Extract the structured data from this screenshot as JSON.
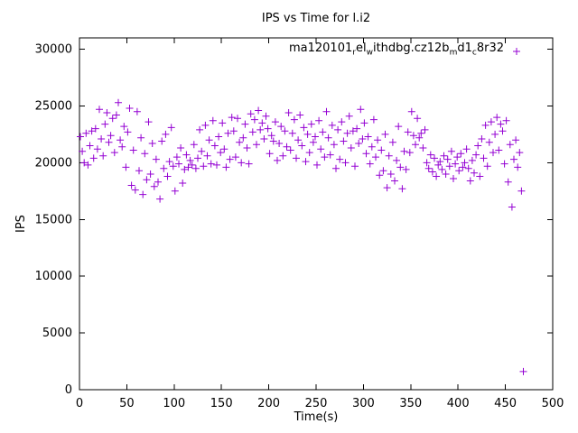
{
  "chart": {
    "title": "IPS vs Time for l.i2",
    "x_label": "Time(s)",
    "y_label": "IPS"
  },
  "legend": {
    "label_plain": "ma120101_rel_withdbg.cz12b_md1_c8r32",
    "segments": [
      {
        "text": "ma120101",
        "sub": false
      },
      {
        "text": "r",
        "sub": true
      },
      {
        "text": "el",
        "sub": false
      },
      {
        "text": "w",
        "sub": true
      },
      {
        "text": "ithdbg.cz12b",
        "sub": false
      },
      {
        "text": "m",
        "sub": true
      },
      {
        "text": "d1",
        "sub": false
      },
      {
        "text": "c",
        "sub": true
      },
      {
        "text": "8r32",
        "sub": false
      }
    ],
    "marker": "plus",
    "color": "#9400d3",
    "position": "top-right-inside"
  },
  "axes": {
    "x": {
      "label": "Time(s)",
      "min": 0,
      "max": 500,
      "tick_step": 50,
      "ticks": [
        0,
        50,
        100,
        150,
        200,
        250,
        300,
        350,
        400,
        450,
        500
      ]
    },
    "y": {
      "label": "IPS",
      "min": 0,
      "max": 30000,
      "tick_step": 5000,
      "ticks": [
        0,
        5000,
        10000,
        15000,
        20000,
        25000,
        30000
      ]
    }
  },
  "chart_data": {
    "type": "scatter",
    "title": "IPS vs Time for l.i2",
    "xlabel": "Time(s)",
    "ylabel": "IPS",
    "xlim": [
      0,
      500
    ],
    "ylim": [
      0,
      31000
    ],
    "grid": false,
    "legend_position": "top-right-inside",
    "series": [
      {
        "name": "ma120101_rel_withdbg.cz12b_md1_c8r32",
        "color": "#9400d3",
        "marker": "plus",
        "points": [
          [
            1,
            22300
          ],
          [
            3,
            21000
          ],
          [
            5,
            20000
          ],
          [
            7,
            22600
          ],
          [
            9,
            19800
          ],
          [
            11,
            21500
          ],
          [
            13,
            22800
          ],
          [
            15,
            20400
          ],
          [
            17,
            23000
          ],
          [
            19,
            21200
          ],
          [
            21,
            24700
          ],
          [
            23,
            22100
          ],
          [
            25,
            20600
          ],
          [
            27,
            23400
          ],
          [
            29,
            24400
          ],
          [
            31,
            21800
          ],
          [
            33,
            22400
          ],
          [
            35,
            23900
          ],
          [
            37,
            20900
          ],
          [
            39,
            24200
          ],
          [
            41,
            25300
          ],
          [
            43,
            22000
          ],
          [
            45,
            21400
          ],
          [
            47,
            23200
          ],
          [
            49,
            19600
          ],
          [
            51,
            22700
          ],
          [
            53,
            24800
          ],
          [
            55,
            18000
          ],
          [
            57,
            21100
          ],
          [
            59,
            17600
          ],
          [
            61,
            24500
          ],
          [
            63,
            19300
          ],
          [
            65,
            22200
          ],
          [
            67,
            17200
          ],
          [
            69,
            20800
          ],
          [
            71,
            18500
          ],
          [
            73,
            23600
          ],
          [
            75,
            19000
          ],
          [
            77,
            21700
          ],
          [
            79,
            17900
          ],
          [
            81,
            20300
          ],
          [
            83,
            18300
          ],
          [
            85,
            16800
          ],
          [
            87,
            21900
          ],
          [
            89,
            19500
          ],
          [
            91,
            22500
          ],
          [
            93,
            18800
          ],
          [
            95,
            20100
          ],
          [
            97,
            23100
          ],
          [
            99,
            19700
          ],
          [
            101,
            17500
          ],
          [
            103,
            20500
          ],
          [
            105,
            19900
          ],
          [
            107,
            21300
          ],
          [
            109,
            18200
          ],
          [
            111,
            19400
          ],
          [
            113,
            20700
          ],
          [
            115,
            19600
          ],
          [
            117,
            20200
          ],
          [
            119,
            19800
          ],
          [
            121,
            21600
          ],
          [
            123,
            19500
          ],
          [
            125,
            20400
          ],
          [
            127,
            22900
          ],
          [
            129,
            21000
          ],
          [
            131,
            19700
          ],
          [
            133,
            23300
          ],
          [
            135,
            20600
          ],
          [
            137,
            22000
          ],
          [
            139,
            19900
          ],
          [
            141,
            23700
          ],
          [
            143,
            21500
          ],
          [
            145,
            19800
          ],
          [
            147,
            22300
          ],
          [
            149,
            20900
          ],
          [
            151,
            23500
          ],
          [
            153,
            21200
          ],
          [
            155,
            19600
          ],
          [
            157,
            22600
          ],
          [
            159,
            20300
          ],
          [
            161,
            24000
          ],
          [
            163,
            22800
          ],
          [
            165,
            20500
          ],
          [
            167,
            23900
          ],
          [
            169,
            21800
          ],
          [
            171,
            20000
          ],
          [
            173,
            22200
          ],
          [
            175,
            23400
          ],
          [
            177,
            21300
          ],
          [
            179,
            19900
          ],
          [
            181,
            24300
          ],
          [
            183,
            22700
          ],
          [
            185,
            23800
          ],
          [
            187,
            21600
          ],
          [
            189,
            24600
          ],
          [
            191,
            22900
          ],
          [
            193,
            23500
          ],
          [
            195,
            22100
          ],
          [
            197,
            24100
          ],
          [
            199,
            23000
          ],
          [
            201,
            20800
          ],
          [
            203,
            22400
          ],
          [
            205,
            21900
          ],
          [
            207,
            23600
          ],
          [
            209,
            20200
          ],
          [
            211,
            21700
          ],
          [
            213,
            23200
          ],
          [
            215,
            20600
          ],
          [
            217,
            22800
          ],
          [
            219,
            21400
          ],
          [
            221,
            24400
          ],
          [
            223,
            21100
          ],
          [
            225,
            22600
          ],
          [
            227,
            23800
          ],
          [
            229,
            20400
          ],
          [
            231,
            22000
          ],
          [
            233,
            24200
          ],
          [
            235,
            21500
          ],
          [
            237,
            23100
          ],
          [
            239,
            20100
          ],
          [
            241,
            22500
          ],
          [
            243,
            20900
          ],
          [
            245,
            23400
          ],
          [
            247,
            21800
          ],
          [
            249,
            22300
          ],
          [
            251,
            19800
          ],
          [
            253,
            23700
          ],
          [
            255,
            21200
          ],
          [
            257,
            22700
          ],
          [
            259,
            20500
          ],
          [
            261,
            24500
          ],
          [
            263,
            22200
          ],
          [
            265,
            20700
          ],
          [
            267,
            23300
          ],
          [
            269,
            21600
          ],
          [
            271,
            19500
          ],
          [
            273,
            22900
          ],
          [
            275,
            20300
          ],
          [
            277,
            23600
          ],
          [
            279,
            21900
          ],
          [
            281,
            20000
          ],
          [
            283,
            22600
          ],
          [
            285,
            24100
          ],
          [
            287,
            21300
          ],
          [
            289,
            22800
          ],
          [
            291,
            19700
          ],
          [
            293,
            23000
          ],
          [
            295,
            21700
          ],
          [
            297,
            24700
          ],
          [
            299,
            22100
          ],
          [
            301,
            23500
          ],
          [
            303,
            20800
          ],
          [
            305,
            22300
          ],
          [
            307,
            19900
          ],
          [
            309,
            21400
          ],
          [
            311,
            23800
          ],
          [
            313,
            20500
          ],
          [
            315,
            22000
          ],
          [
            317,
            18900
          ],
          [
            319,
            21100
          ],
          [
            321,
            19300
          ],
          [
            323,
            22500
          ],
          [
            325,
            17800
          ],
          [
            327,
            20600
          ],
          [
            329,
            19000
          ],
          [
            331,
            21800
          ],
          [
            333,
            18400
          ],
          [
            335,
            20200
          ],
          [
            337,
            23200
          ],
          [
            339,
            19600
          ],
          [
            341,
            17700
          ],
          [
            343,
            21000
          ],
          [
            345,
            19400
          ],
          [
            347,
            22700
          ],
          [
            349,
            20900
          ],
          [
            351,
            24500
          ],
          [
            353,
            22400
          ],
          [
            355,
            21600
          ],
          [
            357,
            23900
          ],
          [
            359,
            22200
          ],
          [
            361,
            22600
          ],
          [
            363,
            21300
          ],
          [
            365,
            22900
          ],
          [
            367,
            20000
          ],
          [
            369,
            19500
          ],
          [
            371,
            20700
          ],
          [
            373,
            19200
          ],
          [
            375,
            20400
          ],
          [
            377,
            18800
          ],
          [
            379,
            19800
          ],
          [
            381,
            20100
          ],
          [
            383,
            19400
          ],
          [
            385,
            20600
          ],
          [
            387,
            19000
          ],
          [
            389,
            20300
          ],
          [
            391,
            19700
          ],
          [
            393,
            21000
          ],
          [
            395,
            18600
          ],
          [
            397,
            19900
          ],
          [
            399,
            20500
          ],
          [
            401,
            19300
          ],
          [
            403,
            20800
          ],
          [
            405,
            19600
          ],
          [
            407,
            20000
          ],
          [
            409,
            21200
          ],
          [
            411,
            19500
          ],
          [
            413,
            18400
          ],
          [
            415,
            20200
          ],
          [
            417,
            19100
          ],
          [
            419,
            20700
          ],
          [
            421,
            21500
          ],
          [
            423,
            18800
          ],
          [
            425,
            22100
          ],
          [
            427,
            20400
          ],
          [
            429,
            23300
          ],
          [
            431,
            19700
          ],
          [
            433,
            21800
          ],
          [
            435,
            23600
          ],
          [
            437,
            20900
          ],
          [
            439,
            22500
          ],
          [
            441,
            24000
          ],
          [
            443,
            21100
          ],
          [
            445,
            23400
          ],
          [
            447,
            22800
          ],
          [
            449,
            19900
          ],
          [
            451,
            23700
          ],
          [
            453,
            18300
          ],
          [
            455,
            21600
          ],
          [
            457,
            16100
          ],
          [
            459,
            20300
          ],
          [
            461,
            22000
          ],
          [
            463,
            19600
          ],
          [
            465,
            20900
          ],
          [
            467,
            17500
          ],
          [
            469,
            1600
          ]
        ]
      }
    ]
  },
  "colors": {
    "marker": "#9400d3",
    "axis": "#000000",
    "background": "#ffffff"
  }
}
